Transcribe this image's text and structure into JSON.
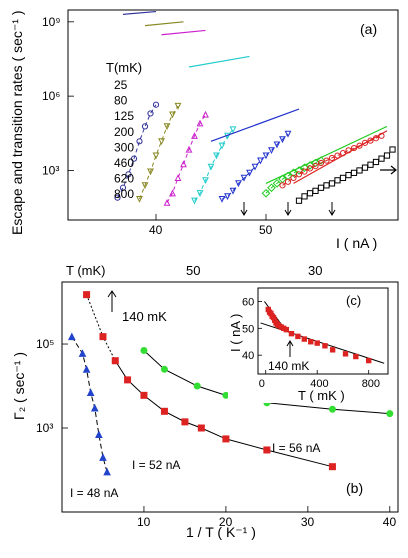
{
  "chart_data": [
    {
      "panel": "(a)",
      "type": "scatter",
      "yscale": "log",
      "xlabel": "I ( nA )",
      "ylabel": "Escape and transition rates ( sec⁻¹ )",
      "xlim": [
        32,
        62
      ],
      "ylim": [
        10,
        3000000000
      ],
      "xticks": [
        40,
        50
      ],
      "ytick_labels": [
        "10⁹",
        "10⁶",
        "10³"
      ],
      "legend_title": "T(mK)",
      "legend": [
        {
          "label": "25",
          "color": "#000000",
          "marker": "square"
        },
        {
          "label": "80",
          "color": "#dd2222",
          "marker": "circle"
        },
        {
          "label": "125",
          "color": "#22cc22",
          "marker": "diamond"
        },
        {
          "label": "200",
          "color": "#2233cc",
          "marker": "triangle-down"
        },
        {
          "label": "300",
          "color": "#22cccc",
          "marker": "triangle-down"
        },
        {
          "label": "460",
          "color": "#cc22cc",
          "marker": "triangle-up"
        },
        {
          "label": "620",
          "color": "#888822",
          "marker": "triangle-down"
        },
        {
          "label": "800",
          "color": "#333399",
          "marker": "circle"
        }
      ],
      "arrows_at_I": [
        48,
        52,
        56
      ],
      "series": [
        {
          "T_mK": "800",
          "color": "#333399",
          "points": [
            [
              36.5,
              80
            ],
            [
              37,
              200
            ],
            [
              37.5,
              700
            ],
            [
              38,
              3000
            ],
            [
              38.5,
              15000
            ],
            [
              39,
              60000
            ],
            [
              39.5,
              200000
            ],
            [
              40,
              450000
            ]
          ],
          "line": [
            [
              37,
              2000000000
            ],
            [
              40,
              2600000000
            ]
          ]
        },
        {
          "T_mK": "620",
          "color": "#888822",
          "points": [
            [
              38.5,
              70
            ],
            [
              39,
              250
            ],
            [
              39.5,
              900
            ],
            [
              40,
              4000
            ],
            [
              40.5,
              15000
            ],
            [
              41,
              60000
            ],
            [
              41.5,
              180000
            ],
            [
              42,
              400000
            ]
          ],
          "line": [
            [
              39,
              700000000
            ],
            [
              42.5,
              1000000000
            ]
          ]
        },
        {
          "T_mK": "460",
          "color": "#cc22cc",
          "points": [
            [
              41,
              50
            ],
            [
              41.5,
              120
            ],
            [
              42,
              500
            ],
            [
              42.5,
              1800
            ],
            [
              43,
              7000
            ],
            [
              43.5,
              25000
            ],
            [
              44,
              80000
            ],
            [
              44.5,
              180000
            ]
          ],
          "line": [
            [
              40.5,
              300000000
            ],
            [
              44.5,
              450000000
            ]
          ]
        },
        {
          "T_mK": "300",
          "color": "#22cccc",
          "points": [
            [
              43.5,
              60
            ],
            [
              44,
              120
            ],
            [
              44.5,
              400
            ],
            [
              45,
              1400
            ],
            [
              45.5,
              4000
            ],
            [
              46,
              10000
            ],
            [
              46.5,
              25000
            ],
            [
              47,
              45000
            ]
          ],
          "line": [
            [
              43,
              15000000
            ],
            [
              48.5,
              40000000
            ]
          ]
        },
        {
          "T_mK": "200",
          "color": "#2233cc",
          "points": [
            [
              46,
              70
            ],
            [
              46.5,
              90
            ],
            [
              47,
              150
            ],
            [
              47.5,
              300
            ],
            [
              48,
              500
            ],
            [
              48.5,
              800
            ],
            [
              49,
              1400
            ],
            [
              49.5,
              2500
            ],
            [
              50,
              4000
            ],
            [
              50.5,
              6500
            ],
            [
              51,
              11000
            ],
            [
              51.5,
              18000
            ],
            [
              52,
              30000
            ]
          ],
          "line": [
            [
              45,
              15000
            ],
            [
              53,
              300000
            ]
          ]
        },
        {
          "T_mK": "125",
          "color": "#22cc22",
          "points": [
            [
              50,
              120
            ],
            [
              50.5,
              200
            ],
            [
              51,
              300
            ],
            [
              51.5,
              450
            ],
            [
              52,
              600
            ],
            [
              52.5,
              800
            ],
            [
              53,
              1000
            ],
            [
              53.5,
              1300
            ],
            [
              54,
              1600
            ],
            [
              54.5,
              2000
            ],
            [
              55,
              2500
            ]
          ],
          "line": [
            [
              50,
              300
            ],
            [
              61,
              60000
            ]
          ]
        },
        {
          "T_mK": "80",
          "color": "#dd2222",
          "points": [
            [
              51.5,
              250
            ],
            [
              52,
              350
            ],
            [
              52.5,
              500
            ],
            [
              53,
              700
            ],
            [
              53.5,
              900
            ],
            [
              54,
              1200
            ],
            [
              54.5,
              1500
            ],
            [
              55,
              2000
            ],
            [
              55.5,
              2500
            ],
            [
              56,
              3200
            ],
            [
              56.5,
              4000
            ],
            [
              57,
              5000
            ],
            [
              57.5,
              6500
            ],
            [
              58,
              8000
            ],
            [
              58.5,
              10000
            ],
            [
              59,
              13000
            ],
            [
              59.5,
              16000
            ],
            [
              60,
              20000
            ],
            [
              60.5,
              25000
            ]
          ],
          "line": [
            [
              52.5,
              300
            ],
            [
              61,
              40000
            ]
          ]
        },
        {
          "T_mK": "25",
          "color": "#000000",
          "points": [
            [
              53,
              60
            ],
            [
              53.5,
              90
            ],
            [
              54,
              120
            ],
            [
              54.5,
              150
            ],
            [
              55,
              200
            ],
            [
              55.5,
              250
            ],
            [
              56,
              300
            ],
            [
              56.5,
              400
            ],
            [
              57,
              500
            ],
            [
              57.5,
              650
            ],
            [
              58,
              800
            ],
            [
              58.5,
              1000
            ],
            [
              59,
              1300
            ],
            [
              59.5,
              1700
            ],
            [
              60,
              2200
            ],
            [
              60.5,
              3000
            ],
            [
              61,
              4000
            ],
            [
              61.5,
              7000
            ]
          ]
        }
      ]
    },
    {
      "panel": "(b)",
      "type": "scatter",
      "yscale": "log",
      "xlabel": "1 / T ( K⁻¹ )",
      "ylabel": "Γ₂ ( sec⁻¹ )",
      "top_xlabel": "T (mK)",
      "top_ticks": [
        "50",
        "30"
      ],
      "xlim": [
        0,
        41
      ],
      "ylim": [
        10,
        3000000
      ],
      "xticks": [
        10,
        20,
        30,
        40
      ],
      "ytick_labels": [
        "10⁵",
        "10³"
      ],
      "annotation": "140 mK",
      "series": [
        {
          "label": "I = 48 nA",
          "color": "#2244cc",
          "marker": "triangle",
          "points": [
            [
              1.2,
              150000
            ],
            [
              2.5,
              60000
            ],
            [
              3,
              25000
            ],
            [
              3.5,
              7000
            ],
            [
              4,
              3000
            ],
            [
              4.5,
              700
            ],
            [
              5,
              200
            ],
            [
              5.5,
              90
            ]
          ]
        },
        {
          "label": "I = 52 nA",
          "color": "#dd2222",
          "marker": "square",
          "points": [
            [
              3,
              1500000
            ],
            [
              5,
              150000
            ],
            [
              6.5,
              40000
            ],
            [
              8,
              14000
            ],
            [
              10,
              6000
            ],
            [
              12.5,
              2500
            ],
            [
              15,
              1400
            ],
            [
              17,
              1000
            ],
            [
              20,
              550
            ],
            [
              25,
              300
            ],
            [
              33,
              120
            ]
          ]
        },
        {
          "label": "I = 56 nA",
          "color": "#33dd33",
          "marker": "circle",
          "points": [
            [
              10,
              70000
            ],
            [
              12.5,
              25000
            ],
            [
              16.5,
              10000
            ],
            [
              20,
              6000
            ],
            [
              25,
              4000
            ],
            [
              33,
              2800
            ],
            [
              40,
              2200
            ]
          ]
        }
      ]
    },
    {
      "panel": "(c)",
      "type": "scatter",
      "xlabel": "T ( mK )",
      "ylabel": "I ( nA )",
      "xlim": [
        -60,
        950
      ],
      "ylim": [
        33,
        65
      ],
      "xticks": [
        0,
        400,
        800
      ],
      "yticks": [
        40,
        50,
        60
      ],
      "annotation": "140 mK",
      "series": [
        {
          "color": "#dd2222",
          "marker": "square",
          "points": [
            [
              20,
              57
            ],
            [
              30,
              56
            ],
            [
              40,
              55.5
            ],
            [
              50,
              54.5
            ],
            [
              60,
              54
            ],
            [
              70,
              53
            ],
            [
              80,
              52
            ],
            [
              90,
              51.5
            ],
            [
              100,
              51
            ],
            [
              120,
              50.5
            ],
            [
              140,
              50
            ],
            [
              160,
              49.5
            ],
            [
              200,
              48
            ],
            [
              250,
              47
            ],
            [
              300,
              46
            ],
            [
              350,
              45
            ],
            [
              400,
              44.5
            ],
            [
              460,
              43.5
            ],
            [
              520,
              42
            ],
            [
              620,
              40.5
            ],
            [
              700,
              39.5
            ],
            [
              800,
              38
            ]
          ]
        }
      ]
    }
  ]
}
